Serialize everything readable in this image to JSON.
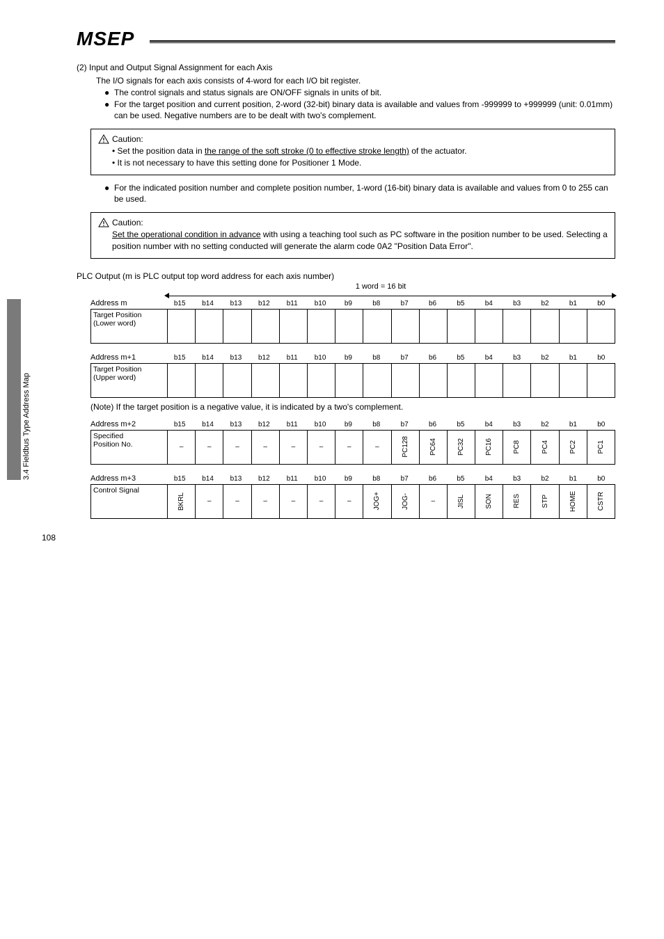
{
  "side_label": "3.4 Fieldbus Type Address Map",
  "logo": {
    "text": "MSEP"
  },
  "section": {
    "title": "(2) Input and Output Signal Assignment for each Axis",
    "intro": "The I/O signals for each axis consists of 4-word for each I/O bit register.",
    "bullets": [
      "The control signals and status signals are ON/OFF signals in units of bit.",
      "For the target position and current position, 2-word (32-bit) binary data is available and values from -999999 to +999999 (unit: 0.01mm) can be used. Negative numbers are to be dealt with two's complement."
    ]
  },
  "caution1": {
    "label": "Caution:",
    "line1a": "• Set the position data in ",
    "line1u": "the range of the soft stroke (0 to effective stroke length)",
    "line1b": " of the actuator.",
    "line2": "• It is not necessary to have this setting done for Positioner 1 Mode."
  },
  "mid_bullet": "For the indicated position number and complete position number, 1-word (16-bit) binary data is available and values from 0 to 255 can be used.",
  "caution2": {
    "label": "Caution:",
    "line1u": "Set the operational condition in advance",
    "line1b": " with using a teaching tool such as PC software in the position number to be used. Selecting a position number with no setting conducted will generate the alarm code 0A2 \"Position Data Error\"."
  },
  "plc": {
    "title": "PLC Output (m is PLC output top word address for each axis number)",
    "word_note": "1 word = 16 bit",
    "bits": [
      "b15",
      "b14",
      "b13",
      "b12",
      "b11",
      "b10",
      "b9",
      "b8",
      "b7",
      "b6",
      "b5",
      "b4",
      "b3",
      "b2",
      "b1",
      "b0"
    ],
    "tables": [
      {
        "addr": "Address m",
        "rowlabel": "Target Position\n(Lower word)",
        "arrow": true,
        "cells": [
          "",
          "",
          "",
          "",
          "",
          "",
          "",
          "",
          "",
          "",
          "",
          "",
          "",
          "",
          "",
          ""
        ]
      },
      {
        "addr": "Address m+1",
        "rowlabel": "Target Position\n(Upper word)",
        "arrow": false,
        "cells": [
          "",
          "",
          "",
          "",
          "",
          "",
          "",
          "",
          "",
          "",
          "",
          "",
          "",
          "",
          "",
          ""
        ]
      },
      {
        "addr": "Address m+2",
        "rowlabel": "Specified\nPosition No.",
        "arrow": false,
        "cells": [
          "–",
          "–",
          "–",
          "–",
          "–",
          "–",
          "–",
          "–",
          "PC128",
          "PC64",
          "PC32",
          "PC16",
          "PC8",
          "PC4",
          "PC2",
          "PC1"
        ]
      },
      {
        "addr": "Address m+3",
        "rowlabel": "Control Signal",
        "arrow": false,
        "cells": [
          "BKRL",
          "–",
          "–",
          "–",
          "–",
          "–",
          "–",
          "JOG+",
          "JOG-",
          "–",
          "JISL",
          "SON",
          "RES",
          "STP",
          "HOME",
          "CSTR"
        ]
      }
    ],
    "note": "(Note)  If the target position is a negative value, it is indicated by a two's complement."
  },
  "page_number": "108",
  "colors": {
    "text": "#000000",
    "bg": "#ffffff",
    "tab": "#7a7a7a"
  }
}
